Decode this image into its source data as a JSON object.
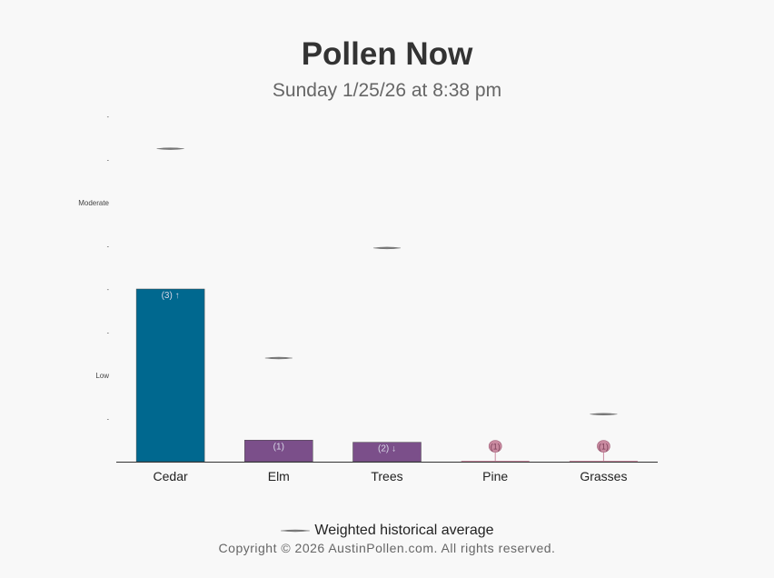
{
  "header": {
    "title": "Pollen Now",
    "subtitle": "Sunday 1/25/26 at 8:38 pm"
  },
  "chart_data": {
    "type": "bar",
    "categories": [
      "Cedar",
      "Elm",
      "Trees",
      "Pine",
      "Grasses"
    ],
    "values": [
      40,
      5,
      4.5,
      0.1,
      0.1
    ],
    "bar_labels": [
      "(3) ↑",
      "(1)",
      "(2) ↓",
      "(1)",
      "(1)"
    ],
    "bar_colors": [
      "#00688f",
      "#7b4f8a",
      "#7b4f8a",
      "#c98aa0",
      "#c98aa0"
    ],
    "historical_average": [
      72.5,
      24,
      49.5,
      0,
      11
    ],
    "y_ticks": [
      {
        "value": 10,
        "label": "-"
      },
      {
        "value": 20,
        "label": "Low"
      },
      {
        "value": 30,
        "label": "-"
      },
      {
        "value": 40,
        "label": "-"
      },
      {
        "value": 50,
        "label": "-"
      },
      {
        "value": 60,
        "label": "Moderate"
      },
      {
        "value": 70,
        "label": "-"
      },
      {
        "value": 80,
        "label": "-"
      }
    ],
    "ylim": [
      0,
      80
    ],
    "grid": false
  },
  "legend": {
    "label": "Weighted historical average"
  },
  "footer": {
    "copyright": "Copyright © 2026 AustinPollen.com.  All rights reserved."
  }
}
